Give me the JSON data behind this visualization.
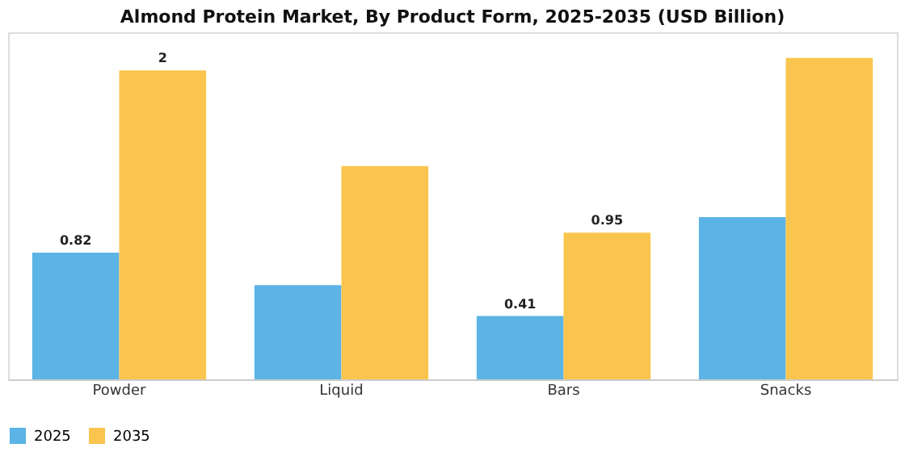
{
  "chart_data": {
    "type": "bar",
    "title": "Almond Protein Market, By Product Form, 2025-2035 (USD Billion)",
    "categories": [
      "Powder",
      "Liquid",
      "Bars",
      "Snacks"
    ],
    "series": [
      {
        "name": "2025",
        "color": "#5bb4e5",
        "values": [
          0.82,
          0.61,
          0.41,
          1.05
        ],
        "value_labels": [
          "0.82",
          null,
          "0.41",
          null
        ]
      },
      {
        "name": "2035",
        "color": "#f9c54e",
        "values": [
          2,
          1.38,
          0.95,
          2.08
        ],
        "value_labels": [
          "2",
          null,
          "0.95",
          null
        ]
      }
    ],
    "legend": "bottom",
    "grid": false,
    "tick_labels": "x"
  }
}
